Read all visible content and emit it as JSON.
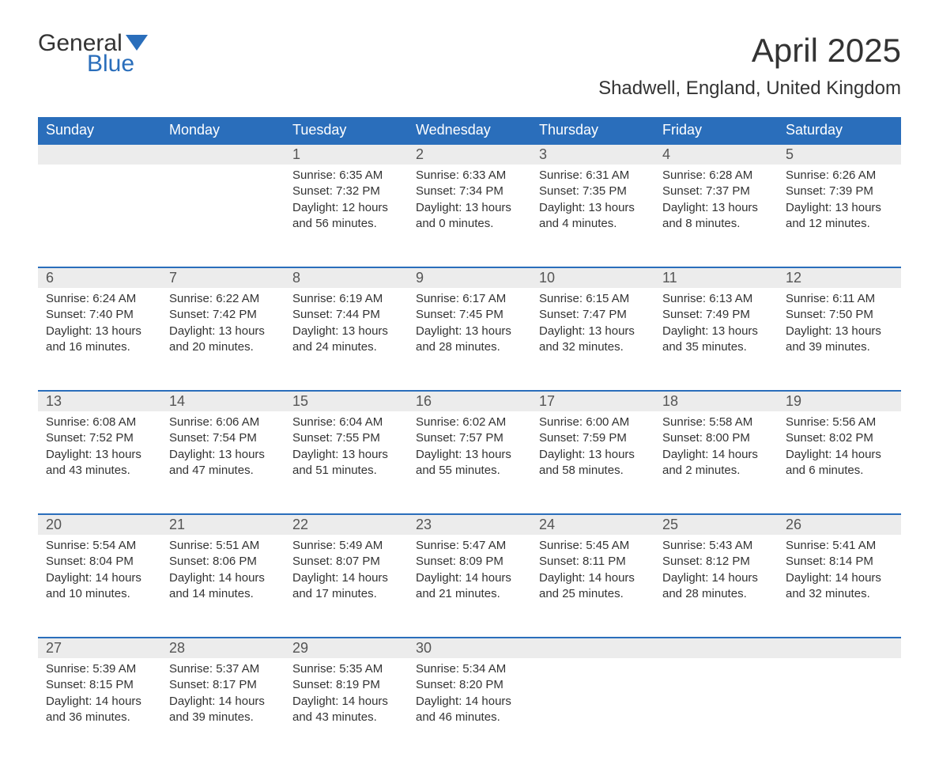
{
  "logo": {
    "word1": "General",
    "word2": "Blue"
  },
  "title": "April 2025",
  "location": "Shadwell, England, United Kingdom",
  "colors": {
    "header_bg": "#2a6ebb",
    "header_text": "#ffffff",
    "daynum_bg": "#ececec",
    "row_border": "#2a6ebb",
    "text": "#333333",
    "logo_gray": "#333333",
    "logo_blue": "#2a6ebb",
    "page_bg": "#ffffff"
  },
  "daysOfWeek": [
    "Sunday",
    "Monday",
    "Tuesday",
    "Wednesday",
    "Thursday",
    "Friday",
    "Saturday"
  ],
  "weeks": [
    [
      {
        "n": "",
        "sunrise": "",
        "sunset": "",
        "daylight1": "",
        "daylight2": ""
      },
      {
        "n": "",
        "sunrise": "",
        "sunset": "",
        "daylight1": "",
        "daylight2": ""
      },
      {
        "n": "1",
        "sunrise": "Sunrise: 6:35 AM",
        "sunset": "Sunset: 7:32 PM",
        "daylight1": "Daylight: 12 hours",
        "daylight2": "and 56 minutes."
      },
      {
        "n": "2",
        "sunrise": "Sunrise: 6:33 AM",
        "sunset": "Sunset: 7:34 PM",
        "daylight1": "Daylight: 13 hours",
        "daylight2": "and 0 minutes."
      },
      {
        "n": "3",
        "sunrise": "Sunrise: 6:31 AM",
        "sunset": "Sunset: 7:35 PM",
        "daylight1": "Daylight: 13 hours",
        "daylight2": "and 4 minutes."
      },
      {
        "n": "4",
        "sunrise": "Sunrise: 6:28 AM",
        "sunset": "Sunset: 7:37 PM",
        "daylight1": "Daylight: 13 hours",
        "daylight2": "and 8 minutes."
      },
      {
        "n": "5",
        "sunrise": "Sunrise: 6:26 AM",
        "sunset": "Sunset: 7:39 PM",
        "daylight1": "Daylight: 13 hours",
        "daylight2": "and 12 minutes."
      }
    ],
    [
      {
        "n": "6",
        "sunrise": "Sunrise: 6:24 AM",
        "sunset": "Sunset: 7:40 PM",
        "daylight1": "Daylight: 13 hours",
        "daylight2": "and 16 minutes."
      },
      {
        "n": "7",
        "sunrise": "Sunrise: 6:22 AM",
        "sunset": "Sunset: 7:42 PM",
        "daylight1": "Daylight: 13 hours",
        "daylight2": "and 20 minutes."
      },
      {
        "n": "8",
        "sunrise": "Sunrise: 6:19 AM",
        "sunset": "Sunset: 7:44 PM",
        "daylight1": "Daylight: 13 hours",
        "daylight2": "and 24 minutes."
      },
      {
        "n": "9",
        "sunrise": "Sunrise: 6:17 AM",
        "sunset": "Sunset: 7:45 PM",
        "daylight1": "Daylight: 13 hours",
        "daylight2": "and 28 minutes."
      },
      {
        "n": "10",
        "sunrise": "Sunrise: 6:15 AM",
        "sunset": "Sunset: 7:47 PM",
        "daylight1": "Daylight: 13 hours",
        "daylight2": "and 32 minutes."
      },
      {
        "n": "11",
        "sunrise": "Sunrise: 6:13 AM",
        "sunset": "Sunset: 7:49 PM",
        "daylight1": "Daylight: 13 hours",
        "daylight2": "and 35 minutes."
      },
      {
        "n": "12",
        "sunrise": "Sunrise: 6:11 AM",
        "sunset": "Sunset: 7:50 PM",
        "daylight1": "Daylight: 13 hours",
        "daylight2": "and 39 minutes."
      }
    ],
    [
      {
        "n": "13",
        "sunrise": "Sunrise: 6:08 AM",
        "sunset": "Sunset: 7:52 PM",
        "daylight1": "Daylight: 13 hours",
        "daylight2": "and 43 minutes."
      },
      {
        "n": "14",
        "sunrise": "Sunrise: 6:06 AM",
        "sunset": "Sunset: 7:54 PM",
        "daylight1": "Daylight: 13 hours",
        "daylight2": "and 47 minutes."
      },
      {
        "n": "15",
        "sunrise": "Sunrise: 6:04 AM",
        "sunset": "Sunset: 7:55 PM",
        "daylight1": "Daylight: 13 hours",
        "daylight2": "and 51 minutes."
      },
      {
        "n": "16",
        "sunrise": "Sunrise: 6:02 AM",
        "sunset": "Sunset: 7:57 PM",
        "daylight1": "Daylight: 13 hours",
        "daylight2": "and 55 minutes."
      },
      {
        "n": "17",
        "sunrise": "Sunrise: 6:00 AM",
        "sunset": "Sunset: 7:59 PM",
        "daylight1": "Daylight: 13 hours",
        "daylight2": "and 58 minutes."
      },
      {
        "n": "18",
        "sunrise": "Sunrise: 5:58 AM",
        "sunset": "Sunset: 8:00 PM",
        "daylight1": "Daylight: 14 hours",
        "daylight2": "and 2 minutes."
      },
      {
        "n": "19",
        "sunrise": "Sunrise: 5:56 AM",
        "sunset": "Sunset: 8:02 PM",
        "daylight1": "Daylight: 14 hours",
        "daylight2": "and 6 minutes."
      }
    ],
    [
      {
        "n": "20",
        "sunrise": "Sunrise: 5:54 AM",
        "sunset": "Sunset: 8:04 PM",
        "daylight1": "Daylight: 14 hours",
        "daylight2": "and 10 minutes."
      },
      {
        "n": "21",
        "sunrise": "Sunrise: 5:51 AM",
        "sunset": "Sunset: 8:06 PM",
        "daylight1": "Daylight: 14 hours",
        "daylight2": "and 14 minutes."
      },
      {
        "n": "22",
        "sunrise": "Sunrise: 5:49 AM",
        "sunset": "Sunset: 8:07 PM",
        "daylight1": "Daylight: 14 hours",
        "daylight2": "and 17 minutes."
      },
      {
        "n": "23",
        "sunrise": "Sunrise: 5:47 AM",
        "sunset": "Sunset: 8:09 PM",
        "daylight1": "Daylight: 14 hours",
        "daylight2": "and 21 minutes."
      },
      {
        "n": "24",
        "sunrise": "Sunrise: 5:45 AM",
        "sunset": "Sunset: 8:11 PM",
        "daylight1": "Daylight: 14 hours",
        "daylight2": "and 25 minutes."
      },
      {
        "n": "25",
        "sunrise": "Sunrise: 5:43 AM",
        "sunset": "Sunset: 8:12 PM",
        "daylight1": "Daylight: 14 hours",
        "daylight2": "and 28 minutes."
      },
      {
        "n": "26",
        "sunrise": "Sunrise: 5:41 AM",
        "sunset": "Sunset: 8:14 PM",
        "daylight1": "Daylight: 14 hours",
        "daylight2": "and 32 minutes."
      }
    ],
    [
      {
        "n": "27",
        "sunrise": "Sunrise: 5:39 AM",
        "sunset": "Sunset: 8:15 PM",
        "daylight1": "Daylight: 14 hours",
        "daylight2": "and 36 minutes."
      },
      {
        "n": "28",
        "sunrise": "Sunrise: 5:37 AM",
        "sunset": "Sunset: 8:17 PM",
        "daylight1": "Daylight: 14 hours",
        "daylight2": "and 39 minutes."
      },
      {
        "n": "29",
        "sunrise": "Sunrise: 5:35 AM",
        "sunset": "Sunset: 8:19 PM",
        "daylight1": "Daylight: 14 hours",
        "daylight2": "and 43 minutes."
      },
      {
        "n": "30",
        "sunrise": "Sunrise: 5:34 AM",
        "sunset": "Sunset: 8:20 PM",
        "daylight1": "Daylight: 14 hours",
        "daylight2": "and 46 minutes."
      },
      {
        "n": "",
        "sunrise": "",
        "sunset": "",
        "daylight1": "",
        "daylight2": ""
      },
      {
        "n": "",
        "sunrise": "",
        "sunset": "",
        "daylight1": "",
        "daylight2": ""
      },
      {
        "n": "",
        "sunrise": "",
        "sunset": "",
        "daylight1": "",
        "daylight2": ""
      }
    ]
  ]
}
